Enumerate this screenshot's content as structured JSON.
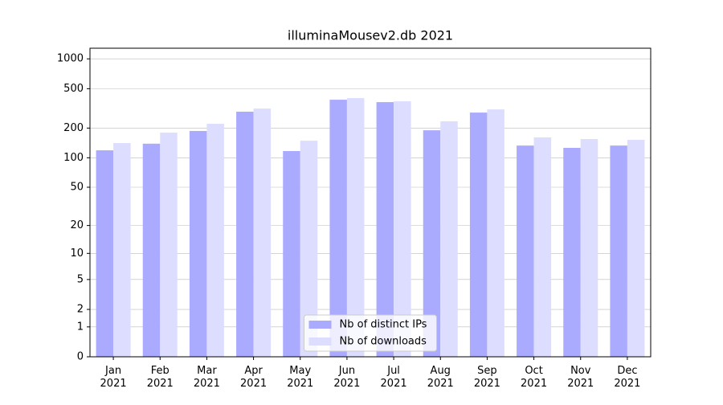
{
  "chart_data": {
    "type": "bar",
    "title": "illuminaMousev2.db 2021",
    "categories": [
      "Jan 2021",
      "Feb 2021",
      "Mar 2021",
      "Apr 2021",
      "May 2021",
      "Jun 2021",
      "Jul 2021",
      "Aug 2021",
      "Sep 2021",
      "Oct 2021",
      "Nov 2021",
      "Dec 2021"
    ],
    "series": [
      {
        "name": "Nb of distinct IPs",
        "color": "#aaaaff",
        "values": [
          119,
          139,
          187,
          293,
          117,
          387,
          366,
          190,
          287,
          133,
          126,
          133
        ]
      },
      {
        "name": "Nb of downloads",
        "color": "#ddddff",
        "values": [
          141,
          180,
          221,
          315,
          149,
          402,
          373,
          234,
          309,
          161,
          155,
          152
        ]
      }
    ],
    "yscale": "log1p",
    "ylim": [
      0,
      1280
    ],
    "yticks": [
      0,
      1,
      2,
      5,
      10,
      20,
      50,
      100,
      200,
      500,
      1000
    ],
    "grid": true,
    "legend": "lower center"
  }
}
